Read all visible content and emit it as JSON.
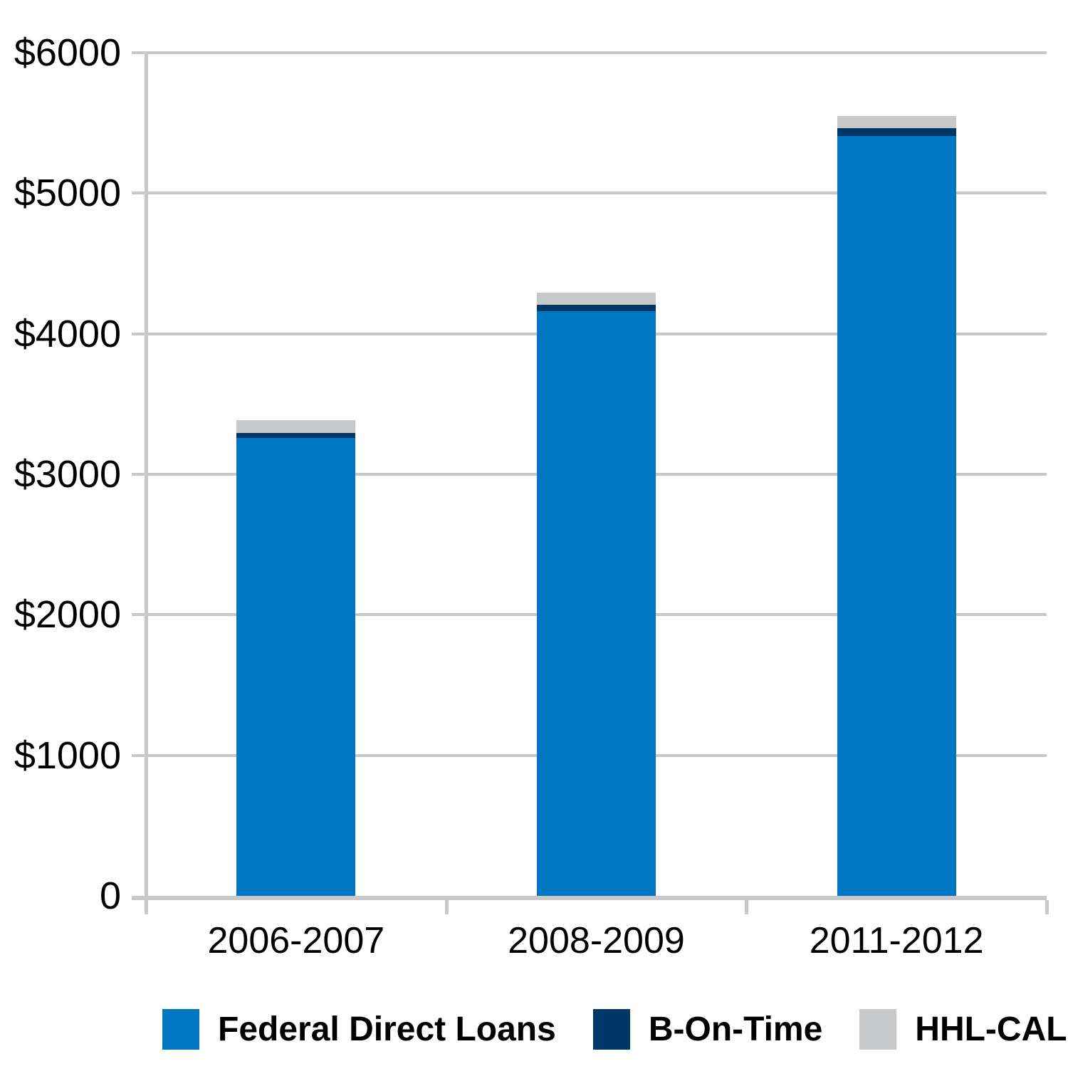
{
  "chart_data": {
    "type": "bar",
    "stacked": true,
    "title": "",
    "xlabel": "",
    "ylabel": "",
    "categories": [
      "2006-2007",
      "2008-2009",
      "2011-2012"
    ],
    "series": [
      {
        "name": "Federal Direct Loans",
        "color": "#0077C2",
        "values": [
          3260,
          4160,
          5405
        ]
      },
      {
        "name": "B-On-Time",
        "color": "#003767",
        "values": [
          35,
          45,
          60
        ]
      },
      {
        "name": "HHL-CAL",
        "color": "#C6C8CA",
        "values": [
          90,
          85,
          85
        ]
      }
    ],
    "totals": [
      3385,
      4290,
      5550
    ],
    "y_axis": {
      "min": 0,
      "max": 6000,
      "step": 1000,
      "tick_labels": [
        "0",
        "$1000",
        "$2000",
        "$3000",
        "$4000",
        "$5000",
        "$6000"
      ],
      "currency_prefix": "$"
    },
    "grid": true,
    "grid_color": "#C6C8CA",
    "axis_color": "#C6C8CA",
    "text_color": "#000000",
    "background_color": "#FFFFFF",
    "legend": {
      "position": "bottom",
      "entries": [
        "Federal Direct Loans",
        "B-On-Time",
        "HHL-CAL"
      ]
    }
  }
}
